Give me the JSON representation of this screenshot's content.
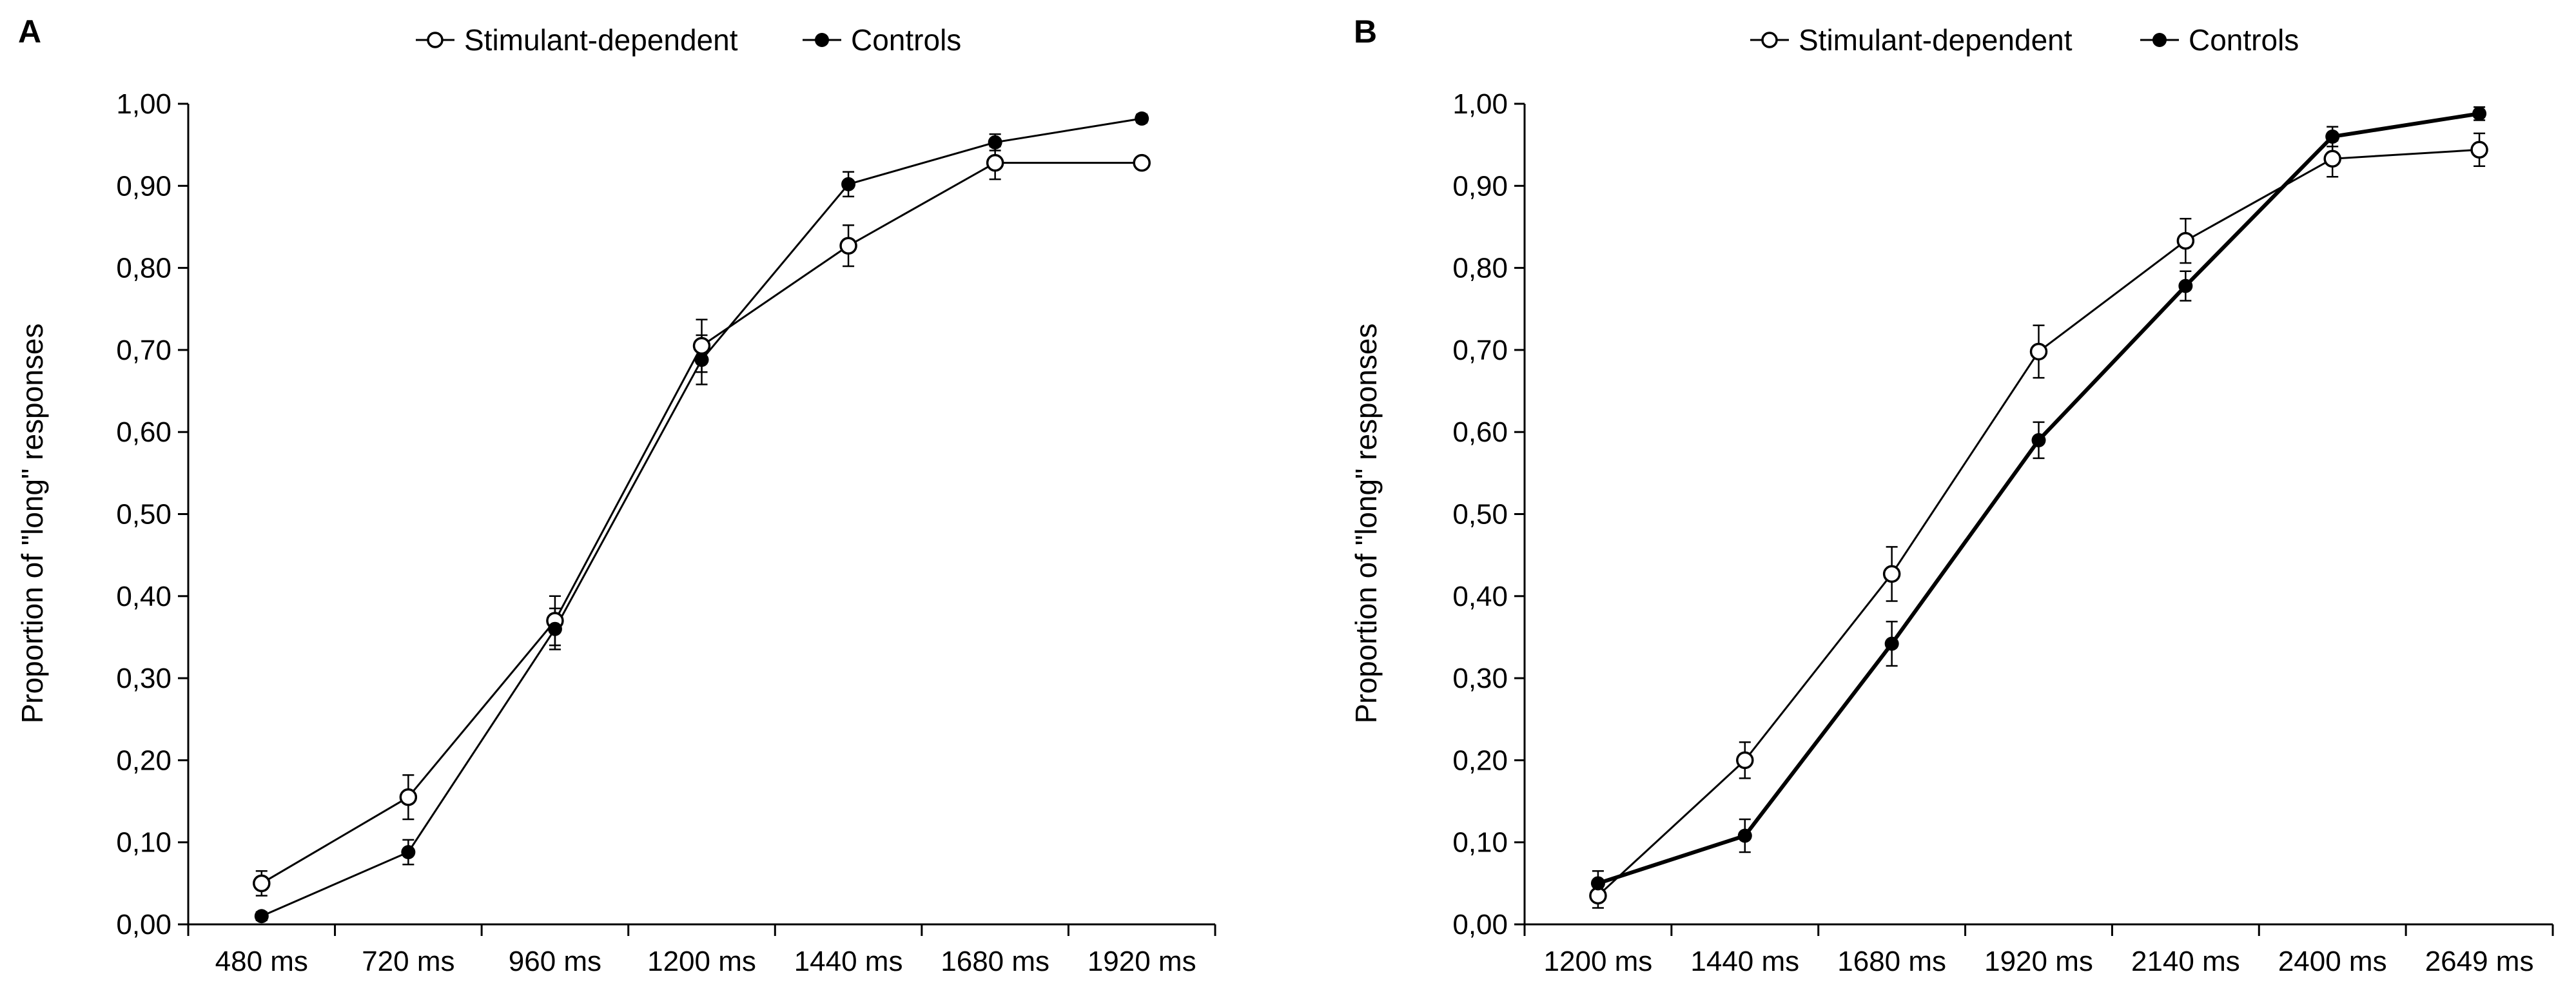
{
  "chart_data": [
    {
      "panel": "A",
      "type": "line",
      "title": "",
      "xlabel": "",
      "ylabel": "Proportion of \"long\" responses",
      "categories": [
        "480 ms",
        "720 ms",
        "960 ms",
        "1200 ms",
        "1440 ms",
        "1680 ms",
        "1920 ms"
      ],
      "ylim": [
        0,
        1
      ],
      "yticks": [
        "0,00",
        "0,10",
        "0,20",
        "0,30",
        "0,40",
        "0,50",
        "0,60",
        "0,70",
        "0,80",
        "0,90",
        "1,00"
      ],
      "legend": [
        "Stimulant-dependent",
        "Controls"
      ],
      "series": [
        {
          "name": "Stimulant-dependent",
          "marker": "open-circle",
          "values": [
            0.05,
            0.155,
            0.37,
            0.705,
            0.827,
            0.928,
            0.928
          ],
          "errors": [
            0.015,
            0.027,
            0.03,
            0.032,
            0.025,
            0.02,
            0.0
          ]
        },
        {
          "name": "Controls",
          "marker": "filled-circle",
          "values": [
            0.01,
            0.088,
            0.36,
            0.688,
            0.902,
            0.953,
            0.982
          ],
          "errors": [
            0.005,
            0.015,
            0.025,
            0.03,
            0.015,
            0.01,
            0.005
          ]
        }
      ]
    },
    {
      "panel": "B",
      "type": "line",
      "title": "",
      "xlabel": "",
      "ylabel": "Proportion of \"long\" responses",
      "categories": [
        "1200 ms",
        "1440 ms",
        "1680 ms",
        "1920 ms",
        "2140 ms",
        "2400 ms",
        "2649 ms"
      ],
      "ylim": [
        0,
        1
      ],
      "yticks": [
        "0,00",
        "0,10",
        "0,20",
        "0,30",
        "0,40",
        "0,50",
        "0,60",
        "0,70",
        "0,80",
        "0,90",
        "1,00"
      ],
      "legend": [
        "Stimulant-dependent",
        "Controls"
      ],
      "series": [
        {
          "name": "Stimulant-dependent",
          "marker": "open-circle",
          "values": [
            0.035,
            0.2,
            0.427,
            0.698,
            0.833,
            0.933,
            0.944
          ],
          "errors": [
            0.015,
            0.022,
            0.033,
            0.032,
            0.027,
            0.022,
            0.02
          ]
        },
        {
          "name": "Controls",
          "marker": "filled-circle",
          "values": [
            0.05,
            0.108,
            0.342,
            0.59,
            0.778,
            0.96,
            0.988
          ],
          "errors": [
            0.015,
            0.02,
            0.027,
            0.022,
            0.018,
            0.012,
            0.008
          ]
        }
      ]
    }
  ]
}
